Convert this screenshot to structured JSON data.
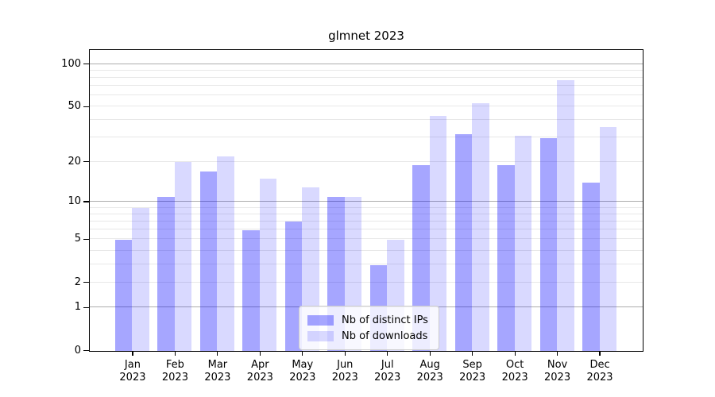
{
  "chart_data": {
    "type": "bar",
    "title": "glmnet 2023",
    "categories": [
      "Jan",
      "Feb",
      "Mar",
      "Apr",
      "May",
      "Jun",
      "Jul",
      "Aug",
      "Sep",
      "Oct",
      "Nov",
      "Dec"
    ],
    "category_year": "2023",
    "series": [
      {
        "name": "Nb of distinct IPs",
        "color": "rgba(0,0,255,0.35)",
        "values": [
          5,
          11,
          17,
          6,
          7,
          11,
          3,
          19,
          32,
          19,
          30,
          14
        ]
      },
      {
        "name": "Nb of downloads",
        "color": "rgba(0,0,255,0.15)",
        "values": [
          9,
          20,
          22,
          15,
          13,
          11,
          5,
          43,
          53,
          31,
          77,
          36
        ]
      }
    ],
    "yscale": "log10(1+v)",
    "ylim": [
      0,
      125
    ],
    "y_ticks": [
      0,
      1,
      2,
      5,
      10,
      20,
      50,
      100
    ],
    "y_major_gridlines": [
      1,
      10,
      100
    ],
    "y_minor_gridlines": [
      2,
      3,
      4,
      5,
      6,
      7,
      8,
      9,
      20,
      30,
      40,
      50,
      60,
      70,
      80,
      90
    ],
    "grid": "on",
    "legend_position": "lower center inside",
    "xlabel": "",
    "ylabel": ""
  },
  "colors": {
    "bar_distinct_ips": "rgba(0,0,255,0.35)",
    "bar_downloads": "rgba(0,0,255,0.15)",
    "major_gridline": "#adadad",
    "minor_gridline": "#e8e8e8",
    "axis": "#000000"
  }
}
